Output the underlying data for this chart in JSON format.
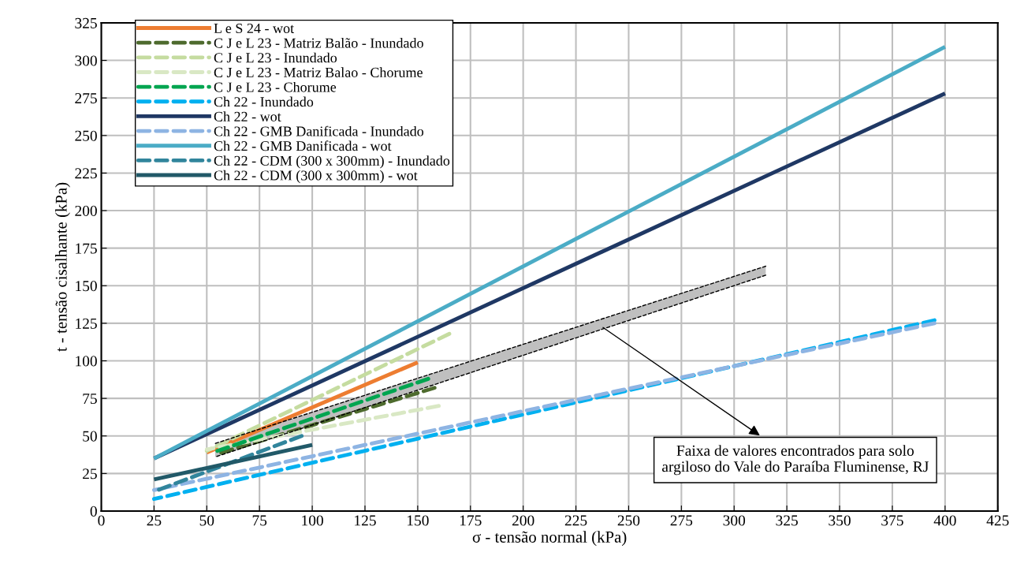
{
  "chart_data": {
    "type": "line",
    "xlabel": "σ - tensão normal (kPa)",
    "ylabel": "t - tensão cisalhante (kPa)",
    "xlim": [
      0,
      425
    ],
    "xticks": [
      0,
      25,
      50,
      75,
      100,
      125,
      150,
      175,
      200,
      225,
      250,
      275,
      300,
      325,
      350,
      375,
      400,
      425
    ],
    "ylim": [
      0,
      325
    ],
    "yticks": [
      0,
      25,
      50,
      75,
      100,
      125,
      150,
      175,
      200,
      225,
      250,
      275,
      300,
      325
    ],
    "grid": true,
    "legend": "top left",
    "marker": "none",
    "series": [
      {
        "name": "L e S 24 - wot",
        "color": "#ed7d31",
        "line_style": "solid",
        "x": [
          50,
          150
        ],
        "values": [
          39,
          99
        ]
      },
      {
        "name": "C J e L 23 - Matriz Balão - Inundado",
        "color": "#4e6b2e",
        "line_style": "dashed",
        "x": [
          55,
          158
        ],
        "values": [
          38,
          82
        ]
      },
      {
        "name": "C J e L 23 - Inundado",
        "color": "#c5dca0",
        "line_style": "dashed",
        "x": [
          50,
          165
        ],
        "values": [
          40,
          118
        ]
      },
      {
        "name": "C J e L 23 - Matriz Balao - Chorume",
        "color": "#d9e8c4",
        "line_style": "dashed",
        "x": [
          50,
          160
        ],
        "values": [
          41,
          70
        ]
      },
      {
        "name": "C J e L 23 - Chorume",
        "color": "#00a550",
        "line_style": "dashed",
        "x": [
          55,
          155
        ],
        "values": [
          40,
          88
        ]
      },
      {
        "name": "Ch 22 - Inundado",
        "color": "#00b0f0",
        "line_style": "dashed",
        "x": [
          25,
          395
        ],
        "values": [
          8,
          127
        ]
      },
      {
        "name": "Ch 22 - wot",
        "color": "#1f3864",
        "line_style": "solid",
        "x": [
          25,
          400
        ],
        "values": [
          35,
          278
        ]
      },
      {
        "name": "Ch 22 - GMB Danificada - Inundado",
        "color": "#8eb4e3",
        "line_style": "dashed",
        "x": [
          25,
          395
        ],
        "values": [
          14,
          125
        ]
      },
      {
        "name": "Ch 22 - GMB Danificada - wot",
        "color": "#4bacc6",
        "line_style": "solid",
        "x": [
          25,
          400
        ],
        "values": [
          35,
          309
        ]
      },
      {
        "name": "Ch 22 - CDM (300 x 300mm) - Inundado",
        "color": "#31859c",
        "line_style": "dashed",
        "x": [
          25,
          95
        ],
        "values": [
          13,
          50
        ]
      },
      {
        "name": "Ch 22 - CDM (300 x 300mm) - wot",
        "color": "#215968",
        "line_style": "solid",
        "x": [
          25,
          100
        ],
        "values": [
          21,
          44
        ]
      },
      {
        "color": "#000000",
        "line_style": "dashed",
        "x": [
          54,
          315
        ],
        "values": [
          36,
          157
        ]
      },
      {
        "color": "#000000",
        "line_style": "dashed",
        "x": [
          54,
          315
        ],
        "values": [
          45,
          163
        ]
      }
    ],
    "annotations": [
      {
        "text": "Faixa de valores encontrados para solo\nargiloso do Vale do Paraíba Fluminense, RJ",
        "x": 237,
        "y": 123
      }
    ]
  }
}
